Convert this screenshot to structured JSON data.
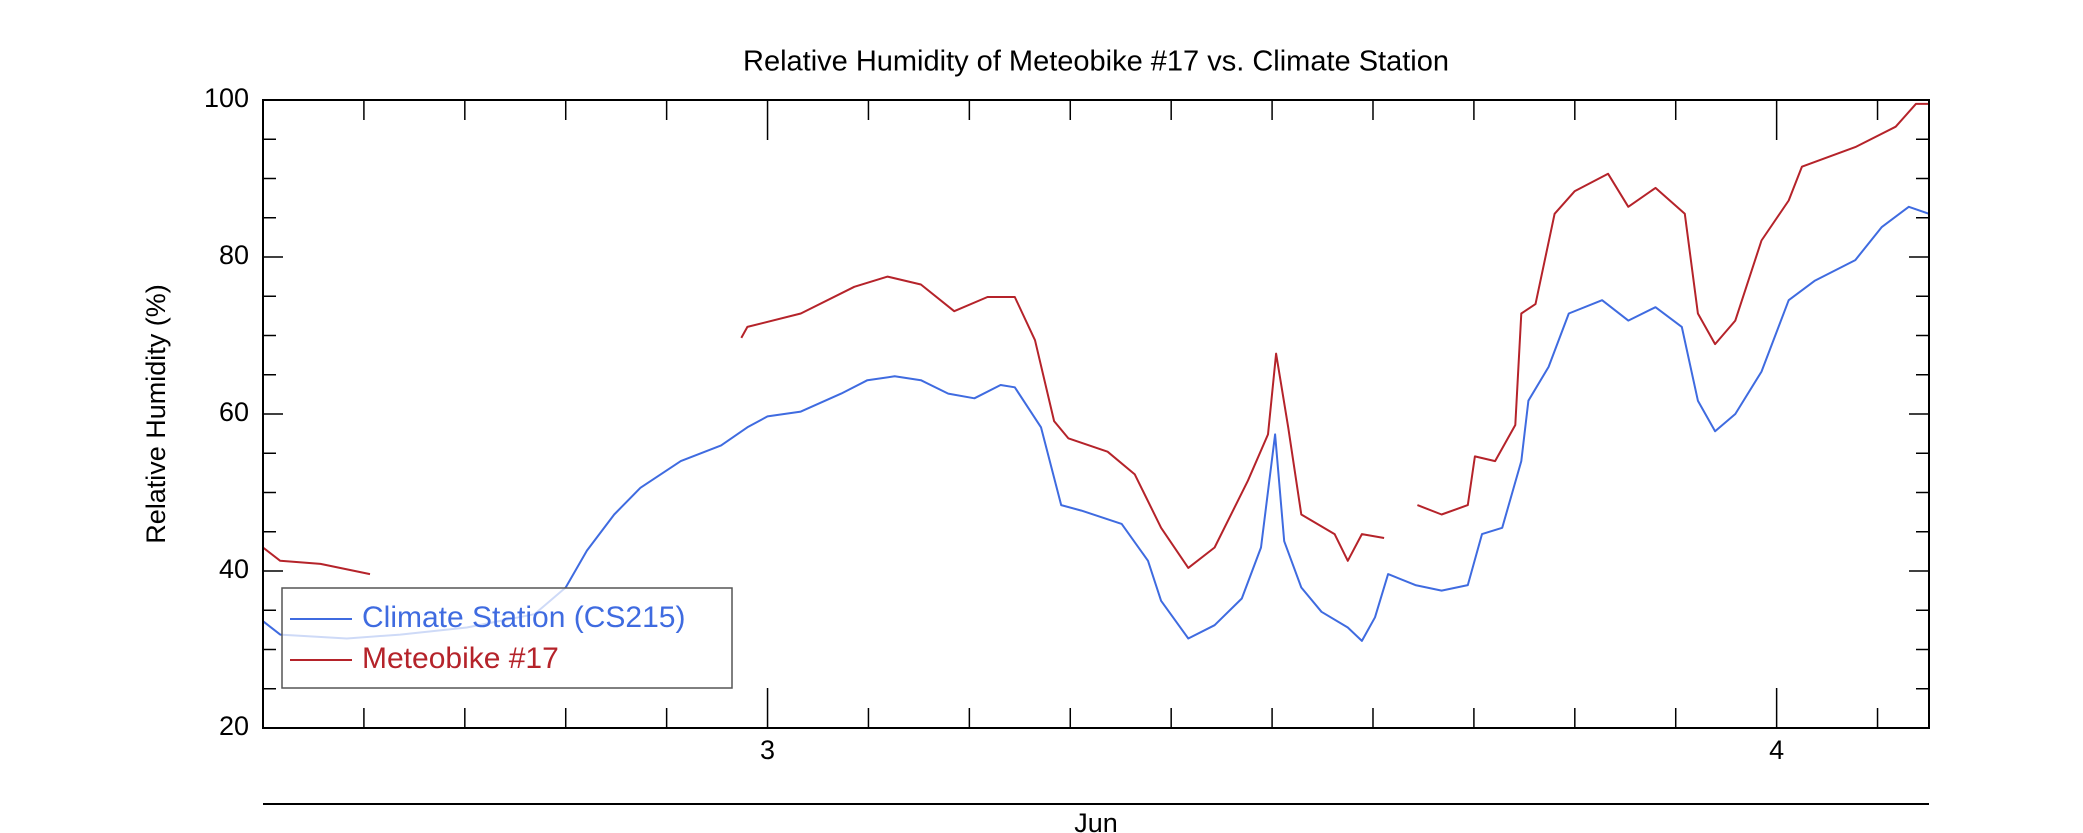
{
  "chart_data": {
    "type": "line",
    "title": "Relative Humidity of Meteobike #17 vs. Climate Station",
    "xlabel": "Jun",
    "ylabel": "Relative Humidity (%)",
    "xlim": [
      2.5,
      4.151
    ],
    "xticks": [
      3,
      4
    ],
    "xminorticks": [
      2.6,
      2.7,
      2.8,
      2.9,
      3.1,
      3.2,
      3.3,
      3.4,
      3.5,
      3.6,
      3.7,
      3.8,
      3.9,
      4.1
    ],
    "ylim": [
      20,
      100
    ],
    "yticks": [
      20,
      40,
      60,
      80,
      100
    ],
    "yminorticks": [
      25,
      30,
      35,
      45,
      50,
      55,
      65,
      70,
      75,
      85,
      90,
      95
    ],
    "legend": "lower left",
    "series": [
      {
        "name": "Climate Station (CS215)",
        "color": "#3f6be0",
        "x": [
          2.5,
          2.517,
          2.583,
          2.636,
          2.702,
          2.769,
          2.8,
          2.821,
          2.848,
          2.874,
          2.914,
          2.954,
          2.98,
          3.0,
          3.033,
          3.073,
          3.099,
          3.126,
          3.152,
          3.179,
          3.205,
          3.231,
          3.245,
          3.271,
          3.291,
          3.311,
          3.351,
          3.377,
          3.39,
          3.417,
          3.443,
          3.47,
          3.489,
          3.503,
          3.512,
          3.529,
          3.549,
          3.575,
          3.589,
          3.602,
          3.615,
          3.642,
          3.668,
          3.694,
          3.708,
          3.728,
          3.747,
          3.754,
          3.774,
          3.794,
          3.827,
          3.853,
          3.88,
          3.906,
          3.922,
          3.939,
          3.959,
          3.985,
          4.012,
          4.038,
          4.078,
          4.104,
          4.131,
          4.151
        ],
        "values": [
          33.6,
          31.9,
          31.4,
          31.9,
          32.8,
          34.5,
          37.9,
          42.6,
          47.2,
          50.6,
          54,
          56,
          58.3,
          59.7,
          60.3,
          62.6,
          64.3,
          64.8,
          64.3,
          62.6,
          62,
          63.7,
          63.4,
          58.3,
          48.4,
          47.7,
          46,
          41.3,
          36.2,
          31.4,
          33.1,
          36.5,
          43,
          57.4,
          43.8,
          37.9,
          34.8,
          32.8,
          31.1,
          34.1,
          39.6,
          38.2,
          37.5,
          38.2,
          44.7,
          45.5,
          54,
          61.7,
          66,
          72.8,
          74.5,
          71.9,
          73.6,
          71.1,
          61.7,
          57.8,
          60,
          65.4,
          74.5,
          77,
          79.6,
          83.8,
          86.4,
          85.5
        ]
      },
      {
        "name": "Meteobike #17",
        "color": "#b5232a",
        "x": [
          2.5,
          2.517,
          2.557,
          2.606,
          2.8,
          2.974,
          2.98,
          3.033,
          3.086,
          3.119,
          3.152,
          3.185,
          3.218,
          3.245,
          3.265,
          3.284,
          3.298,
          3.337,
          3.364,
          3.39,
          3.417,
          3.443,
          3.476,
          3.496,
          3.504,
          3.516,
          3.529,
          3.562,
          3.575,
          3.589,
          3.611,
          3.63,
          3.644,
          3.668,
          3.694,
          3.701,
          3.721,
          3.741,
          3.747,
          3.761,
          3.78,
          3.8,
          3.833,
          3.853,
          3.88,
          3.909,
          3.922,
          3.939,
          3.959,
          3.985,
          4.012,
          4.025,
          4.078,
          4.118,
          4.138,
          4.151
        ],
        "values": [
          43,
          41.3,
          40.9,
          39.6,
          null,
          69.7,
          71.1,
          72.8,
          76.2,
          77.5,
          76.5,
          73.1,
          74.9,
          74.9,
          69.4,
          59.1,
          56.9,
          55.2,
          52.3,
          45.5,
          40.4,
          43,
          51.5,
          57.4,
          67.7,
          58.3,
          47.2,
          44.7,
          41.3,
          44.7,
          44.2,
          null,
          48.4,
          47.2,
          48.4,
          54.6,
          54,
          58.6,
          72.8,
          74,
          85.5,
          88.4,
          90.6,
          86.4,
          88.8,
          85.5,
          72.8,
          68.9,
          71.9,
          82.1,
          87.2,
          91.5,
          94,
          96.6,
          99.5,
          99.5
        ]
      }
    ]
  }
}
